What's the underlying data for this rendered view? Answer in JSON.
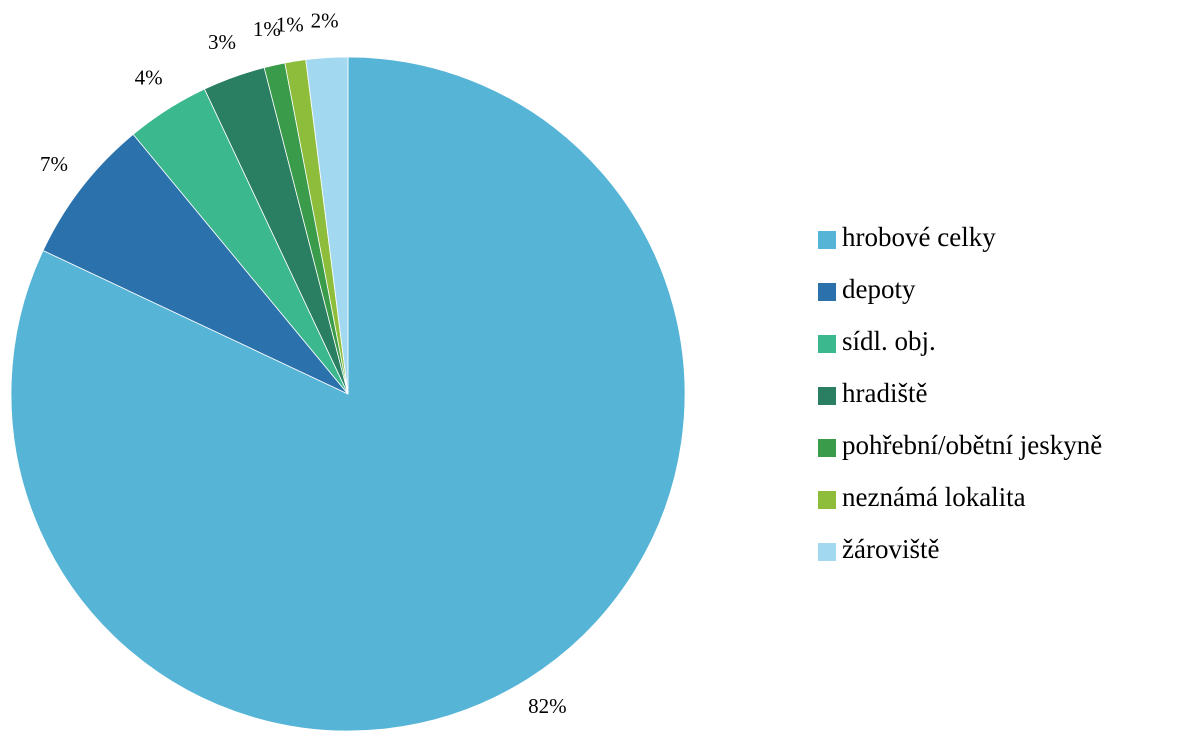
{
  "chart_data": {
    "type": "pie",
    "categories": [
      "hrobové celky",
      "depoty",
      "sídl. obj.",
      "hradiště",
      "pohřební/obětní jeskyně",
      "neznámá lokalita",
      "žároviště"
    ],
    "values": [
      82,
      7,
      4,
      3,
      1,
      1,
      2
    ],
    "value_labels": [
      "82%",
      "7%",
      "4%",
      "3%",
      "1%",
      "1%",
      "2%"
    ],
    "colors": [
      "#56b4d6",
      "#2b72ad",
      "#3cb88f",
      "#2a7f62",
      "#3a9c4a",
      "#8dbd3a",
      "#a3d9f0"
    ],
    "legend": "right"
  }
}
